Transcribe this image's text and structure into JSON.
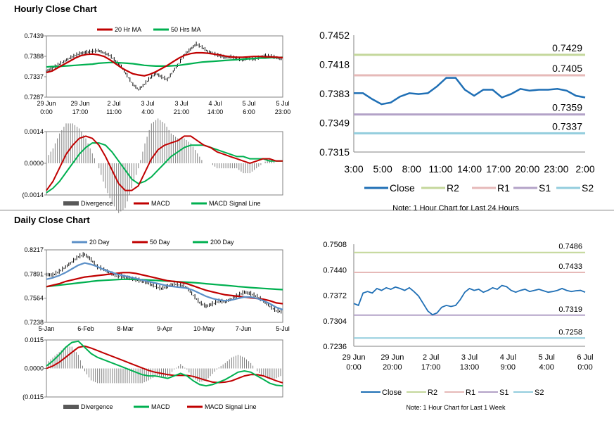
{
  "sections": {
    "hourly": {
      "title": "Hourly Close Chart"
    },
    "daily": {
      "title": "Daily Close Chart"
    }
  },
  "chart_data": [
    {
      "id": "hourly-price",
      "type": "line",
      "legend": [
        "20 Hr MA",
        "50 Hrs MA"
      ],
      "colors": {
        "price": "#000000",
        "ma20": "#c00000",
        "ma50": "#00b050"
      },
      "yticks": [
        "0.7439",
        "0.7388",
        "0.7337",
        "0.7287"
      ],
      "ylim": [
        0.7287,
        0.7439
      ],
      "xticks": [
        [
          "29 Jun",
          "0:00"
        ],
        [
          "29 Jun",
          "17:00"
        ],
        [
          "2 Jul",
          "11:00"
        ],
        [
          "3 Jul",
          "4:00"
        ],
        [
          "3 Jul",
          "21:00"
        ],
        [
          "4 Jul",
          "14:00"
        ],
        [
          "5 Jul",
          "6:00"
        ],
        [
          "5 Jul",
          "23:00"
        ]
      ],
      "series": {
        "price": [
          0.735,
          0.7358,
          0.7366,
          0.7374,
          0.7383,
          0.739,
          0.7395,
          0.7398,
          0.74,
          0.7402,
          0.7396,
          0.739,
          0.7376,
          0.7362,
          0.734,
          0.7318,
          0.7305,
          0.7318,
          0.7334,
          0.7345,
          0.7336,
          0.733,
          0.735,
          0.737,
          0.7392,
          0.7405,
          0.7418,
          0.741,
          0.74,
          0.7394,
          0.7389,
          0.7385,
          0.7386,
          0.7382,
          0.7378,
          0.7383,
          0.738,
          0.7385,
          0.7389,
          0.7387,
          0.7384,
          0.738
        ],
        "ma20": [
          0.7348,
          0.7352,
          0.736,
          0.7368,
          0.7376,
          0.7384,
          0.739,
          0.7393,
          0.7394,
          0.7392,
          0.7388,
          0.738,
          0.737,
          0.736,
          0.7352,
          0.7345,
          0.7342,
          0.734,
          0.7344,
          0.735,
          0.7358,
          0.7366,
          0.7375,
          0.7384,
          0.7391,
          0.7395,
          0.7397,
          0.7397,
          0.7396,
          0.7394,
          0.7392,
          0.7389,
          0.7387,
          0.7386,
          0.7386,
          0.7387,
          0.7388,
          0.7388,
          0.7387,
          0.7387,
          0.7386,
          0.7385
        ],
        "ma50": [
          0.7362,
          0.7363,
          0.7363,
          0.7364,
          0.7365,
          0.7366,
          0.7367,
          0.7368,
          0.7369,
          0.7371,
          0.7372,
          0.7373,
          0.7373,
          0.7372,
          0.7371,
          0.737,
          0.7368,
          0.7366,
          0.7365,
          0.7364,
          0.7364,
          0.7364,
          0.7365,
          0.7366,
          0.7368,
          0.737,
          0.7372,
          0.7374,
          0.7375,
          0.7376,
          0.7377,
          0.7378,
          0.7379,
          0.738,
          0.7381,
          0.7382,
          0.7383,
          0.7384,
          0.7384,
          0.7385,
          0.7385,
          0.7386
        ]
      }
    },
    {
      "id": "hourly-macd",
      "type": "line",
      "legend": [
        "Divergence",
        "MACD",
        "MACD Signal Line"
      ],
      "colors": {
        "divergence": "#7f7f7f",
        "macd": "#c00000",
        "signal": "#00b050"
      },
      "yticks": [
        "0.0014",
        "0.0000",
        "(0.0014"
      ],
      "ylim": [
        -0.0014,
        0.0014
      ],
      "series": {
        "macd": [
          -0.0012,
          -0.0008,
          -0.0002,
          0.0004,
          0.0008,
          0.0011,
          0.0012,
          0.0011,
          0.0008,
          0.0003,
          -0.0003,
          -0.0009,
          -0.0012,
          -0.0012,
          -0.001,
          -0.0004,
          0.0002,
          0.0006,
          0.0008,
          0.0009,
          0.001,
          0.0012,
          0.0012,
          0.001,
          0.0008,
          0.0007,
          0.0005,
          0.0004,
          0.0003,
          0.0002,
          0.0001,
          0.0,
          0.0001,
          0.0002,
          0.0002,
          0.0001,
          0.0001
        ],
        "signal": [
          -0.0013,
          -0.0011,
          -0.0008,
          -0.0004,
          0.0,
          0.0004,
          0.0007,
          0.0009,
          0.0009,
          0.0008,
          0.0005,
          0.0001,
          -0.0003,
          -0.0007,
          -0.0009,
          -0.0008,
          -0.0006,
          -0.0003,
          0.0,
          0.0003,
          0.0005,
          0.0007,
          0.0008,
          0.0008,
          0.0008,
          0.0007,
          0.0006,
          0.0005,
          0.0004,
          0.0003,
          0.0003,
          0.0002,
          0.0002,
          0.0002,
          0.0001,
          0.0001,
          0.0001
        ]
      }
    },
    {
      "id": "hourly-levels",
      "type": "line",
      "title": "",
      "legend": [
        "Close",
        "R2",
        "R1",
        "S1",
        "S2"
      ],
      "colors": {
        "close": "#1f6fb5",
        "r2": "#c4d79b",
        "r1": "#e6b9b8",
        "s1": "#b3a2c7",
        "s2": "#93cddd"
      },
      "yticks": [
        "0.7452",
        "0.7418",
        "0.7383",
        "0.7349",
        "0.7315"
      ],
      "ylim": [
        0.7315,
        0.7452
      ],
      "xticks": [
        "3:00",
        "5:00",
        "8:00",
        "11:00",
        "14:00",
        "17:00",
        "20:00",
        "23:00",
        "2:00"
      ],
      "levels": {
        "R2": 0.7429,
        "R1": 0.7405,
        "S1": 0.7359,
        "S2": 0.7337
      },
      "level_labels": [
        "0.7429",
        "0.7405",
        "0.7359",
        "0.7337"
      ],
      "close": [
        0.7384,
        0.7384,
        0.7377,
        0.7371,
        0.7373,
        0.738,
        0.7384,
        0.7383,
        0.7384,
        0.7392,
        0.7402,
        0.7402,
        0.7388,
        0.7381,
        0.7388,
        0.7388,
        0.7379,
        0.7383,
        0.7389,
        0.7387,
        0.7388,
        0.7388,
        0.7389,
        0.7387,
        0.7381,
        0.7379
      ],
      "note": "Note: 1 Hour Chart for Last 24 Hours"
    },
    {
      "id": "daily-price",
      "type": "line",
      "legend": [
        "20 Day",
        "50 Day",
        "200 Day"
      ],
      "colors": {
        "price": "#000000",
        "d20": "#5b8fc7",
        "d50": "#c00000",
        "d200": "#00b050"
      },
      "yticks": [
        "0.8217",
        "0.7891",
        "0.7564",
        "0.7238"
      ],
      "ylim": [
        0.7238,
        0.8217
      ],
      "xticks": [
        "5-Jan",
        "6-Feb",
        "8-Mar",
        "9-Apr",
        "10-May",
        "7-Jun",
        "5-Jul"
      ],
      "series": {
        "price": [
          0.788,
          0.787,
          0.792,
          0.798,
          0.805,
          0.812,
          0.815,
          0.808,
          0.798,
          0.795,
          0.79,
          0.786,
          0.785,
          0.783,
          0.781,
          0.779,
          0.776,
          0.772,
          0.769,
          0.772,
          0.775,
          0.774,
          0.77,
          0.76,
          0.75,
          0.745,
          0.748,
          0.752,
          0.751,
          0.755,
          0.76,
          0.764,
          0.762,
          0.758,
          0.752,
          0.745,
          0.739,
          0.738
        ],
        "d20": [
          0.782,
          0.784,
          0.787,
          0.791,
          0.796,
          0.801,
          0.804,
          0.802,
          0.799,
          0.795,
          0.792,
          0.789,
          0.787,
          0.785,
          0.783,
          0.781,
          0.779,
          0.777,
          0.775,
          0.773,
          0.772,
          0.771,
          0.77,
          0.767,
          0.763,
          0.759,
          0.756,
          0.754,
          0.753,
          0.754,
          0.756,
          0.758,
          0.758,
          0.756,
          0.753,
          0.749,
          0.744,
          0.741
        ],
        "d50": [
          0.772,
          0.774,
          0.776,
          0.779,
          0.781,
          0.783,
          0.785,
          0.786,
          0.787,
          0.788,
          0.789,
          0.79,
          0.791,
          0.791,
          0.79,
          0.788,
          0.786,
          0.784,
          0.782,
          0.78,
          0.779,
          0.778,
          0.776,
          0.773,
          0.77,
          0.767,
          0.765,
          0.763,
          0.761,
          0.76,
          0.759,
          0.758,
          0.757,
          0.756,
          0.755,
          0.753,
          0.75,
          0.749
        ],
        "d200": [
          0.772,
          0.773,
          0.774,
          0.775,
          0.776,
          0.777,
          0.778,
          0.779,
          0.78,
          0.7805,
          0.781,
          0.7815,
          0.782,
          0.782,
          0.7818,
          0.7815,
          0.781,
          0.7805,
          0.78,
          0.7795,
          0.779,
          0.7785,
          0.778,
          0.7775,
          0.7768,
          0.776,
          0.7752,
          0.7745,
          0.7738,
          0.773,
          0.7722,
          0.7715,
          0.7708,
          0.7702,
          0.7696,
          0.769,
          0.7685,
          0.768
        ]
      }
    },
    {
      "id": "daily-macd",
      "type": "line",
      "legend": [
        "Divergence",
        "MACD",
        "MACD Signal Line"
      ],
      "colors": {
        "divergence": "#7f7f7f",
        "macd": "#00b050",
        "signal": "#c00000"
      },
      "yticks": [
        "0.0115",
        "0.0000",
        "(0.0115"
      ],
      "ylim": [
        -0.0115,
        0.0115
      ],
      "series": {
        "macd": [
          0.001,
          0.003,
          0.0055,
          0.0085,
          0.0105,
          0.011,
          0.0085,
          0.006,
          0.0045,
          0.0035,
          0.0025,
          0.0015,
          0.0005,
          -0.0005,
          -0.0015,
          -0.0025,
          -0.003,
          -0.003,
          -0.0035,
          -0.004,
          -0.003,
          -0.002,
          -0.003,
          -0.005,
          -0.0065,
          -0.007,
          -0.0065,
          -0.0055,
          -0.0045,
          -0.003,
          -0.0015,
          -0.001,
          -0.0015,
          -0.003,
          -0.0045,
          -0.006,
          -0.0068,
          -0.007
        ],
        "signal": [
          0.0,
          0.001,
          0.0025,
          0.0045,
          0.0065,
          0.0085,
          0.009,
          0.0082,
          0.0072,
          0.0062,
          0.0052,
          0.0042,
          0.0032,
          0.0022,
          0.0012,
          0.0002,
          -0.0008,
          -0.0015,
          -0.002,
          -0.0025,
          -0.0028,
          -0.0028,
          -0.0028,
          -0.0032,
          -0.004,
          -0.0048,
          -0.0055,
          -0.0057,
          -0.0055,
          -0.005,
          -0.004,
          -0.003,
          -0.0025,
          -0.0025,
          -0.003,
          -0.004,
          -0.005,
          -0.0058
        ]
      }
    },
    {
      "id": "weekly-levels",
      "type": "line",
      "title": "",
      "legend": [
        "Close",
        "R2",
        "R1",
        "S1",
        "S2"
      ],
      "colors": {
        "close": "#1f6fb5",
        "r2": "#c4d79b",
        "r1": "#e6b9b8",
        "s1": "#b3a2c7",
        "s2": "#93cddd"
      },
      "yticks": [
        "0.7508",
        "0.7440",
        "0.7372",
        "0.7304",
        "0.7236"
      ],
      "ylim": [
        0.7236,
        0.7508
      ],
      "xticks": [
        [
          "29 Jun",
          "0:00"
        ],
        [
          "29 Jun",
          "20:00"
        ],
        [
          "2 Jul",
          "17:00"
        ],
        [
          "3 Jul",
          "13:00"
        ],
        [
          "4 Jul",
          "9:00"
        ],
        [
          "5 Jul",
          "4:00"
        ],
        [
          "6 Jul",
          "0:00"
        ]
      ],
      "levels": {
        "R2": 0.7486,
        "R1": 0.7433,
        "S1": 0.7319,
        "S2": 0.7258
      },
      "level_labels": [
        "0.7486",
        "0.7433",
        "0.7319",
        "0.7258"
      ],
      "close": [
        0.735,
        0.7345,
        0.7378,
        0.7382,
        0.7378,
        0.739,
        0.7385,
        0.7392,
        0.7388,
        0.7394,
        0.739,
        0.7385,
        0.7392,
        0.7382,
        0.737,
        0.735,
        0.733,
        0.732,
        0.7325,
        0.734,
        0.7345,
        0.7342,
        0.7345,
        0.736,
        0.738,
        0.739,
        0.7385,
        0.7388,
        0.738,
        0.7385,
        0.7392,
        0.7388,
        0.7398,
        0.7395,
        0.7385,
        0.738,
        0.7385,
        0.7388,
        0.7382,
        0.7385,
        0.7388,
        0.7384,
        0.738,
        0.7382,
        0.7385,
        0.739,
        0.7385,
        0.7382,
        0.7384,
        0.7385,
        0.738
      ],
      "note": "Note: 1 Hour Chart for Last 1 Week"
    }
  ]
}
